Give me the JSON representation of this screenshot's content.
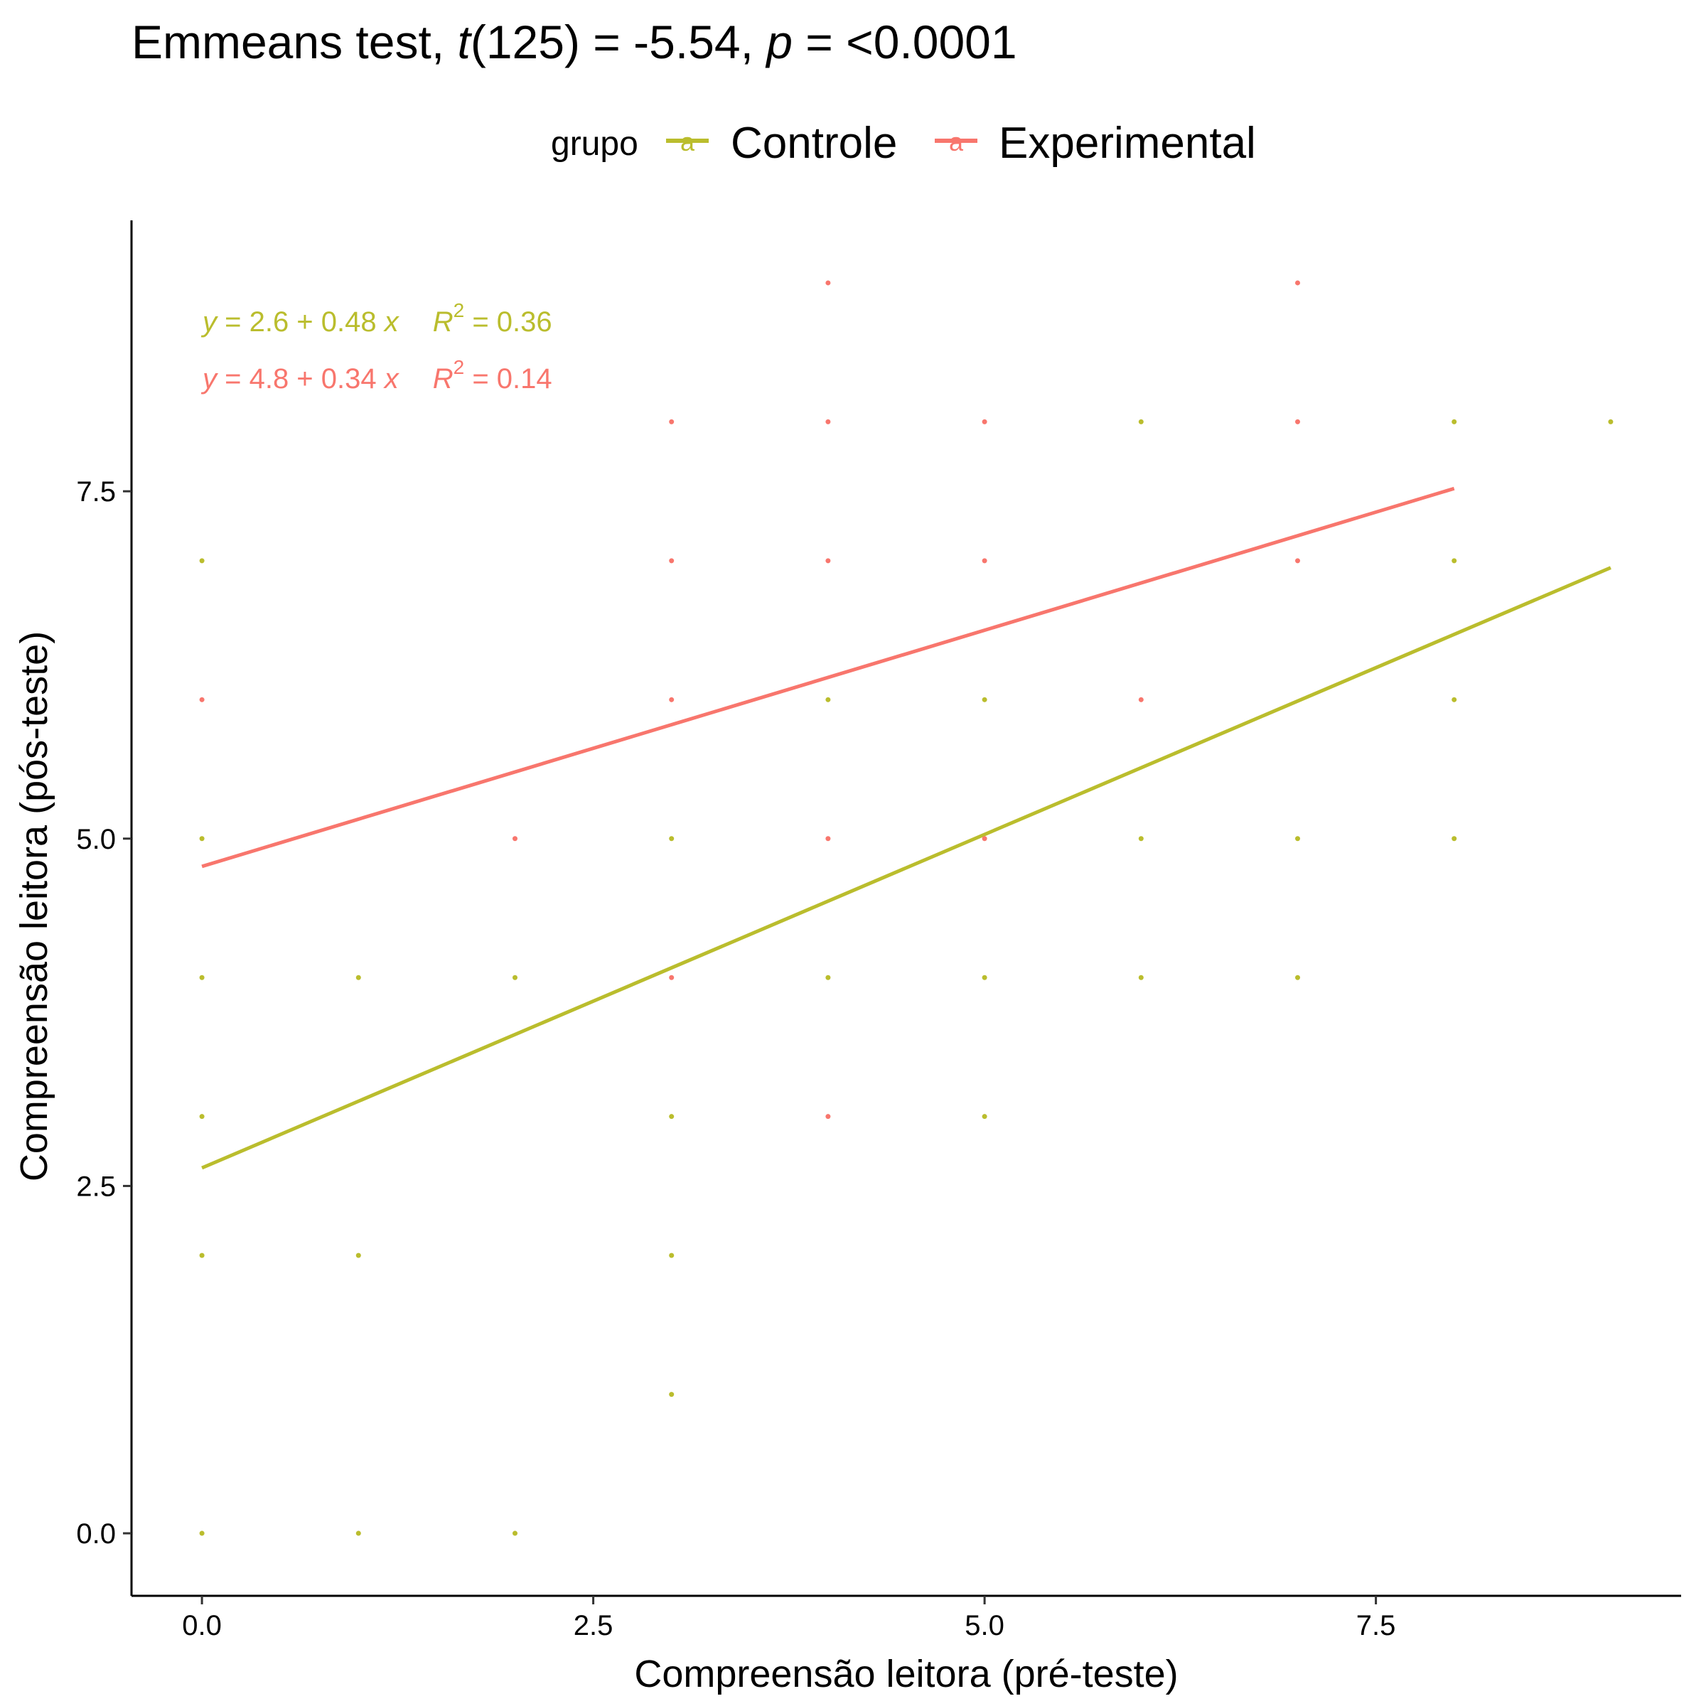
{
  "title": {
    "prefix": "Emmeans test, ",
    "t_symbol": "t",
    "t_stat": "(125) = -5.54, ",
    "p_symbol": "p",
    "p_value": " = <0.0001"
  },
  "legend": {
    "title": "grupo",
    "key_glyph": "a",
    "position": "top"
  },
  "colors": {
    "Controle": "#BABD2D",
    "Experimental": "#F8766D",
    "axis": "#000000"
  },
  "chart_data": {
    "type": "scatter",
    "xlabel": "Compreensão leitora (pré-teste)",
    "ylabel": "Compreensão leitora (pós-teste)",
    "xlim": [
      -0.45,
      9.45
    ],
    "ylim": [
      -0.45,
      9.45
    ],
    "x_ticks": [
      0,
      2.5,
      5,
      7.5
    ],
    "x_tick_labels": [
      "0.0",
      "2.5",
      "5.0",
      "7.5"
    ],
    "y_ticks": [
      0,
      2.5,
      5,
      7.5
    ],
    "y_tick_labels": [
      "0.0",
      "2.5",
      "5.0",
      "7.5"
    ],
    "grid": false,
    "series": [
      {
        "name": "Controle",
        "points": [
          [
            0,
            0
          ],
          [
            1,
            0
          ],
          [
            2,
            0
          ],
          [
            0,
            2
          ],
          [
            1,
            2
          ],
          [
            3,
            2
          ],
          [
            0,
            3
          ],
          [
            3,
            3
          ],
          [
            5,
            3
          ],
          [
            0,
            4
          ],
          [
            1,
            4
          ],
          [
            2,
            4
          ],
          [
            4,
            4
          ],
          [
            5,
            4
          ],
          [
            6,
            4
          ],
          [
            7,
            4
          ],
          [
            0,
            5
          ],
          [
            3,
            5
          ],
          [
            6,
            5
          ],
          [
            7,
            5
          ],
          [
            8,
            5
          ],
          [
            4,
            6
          ],
          [
            5,
            6
          ],
          [
            8,
            6
          ],
          [
            0,
            7
          ],
          [
            8,
            7
          ],
          [
            6,
            8
          ],
          [
            8,
            8
          ],
          [
            9,
            8
          ],
          [
            3,
            1
          ]
        ],
        "fit": {
          "x_range": [
            0,
            9
          ],
          "intercept": 2.63,
          "slope": 0.48
        },
        "equation": {
          "y": "y",
          "rhs": " = 2.6 + 0.48 ",
          "x": "x",
          "r": "R",
          "sup": "2",
          "r2": " = 0.36"
        }
      },
      {
        "name": "Experimental",
        "points": [
          [
            4,
            9
          ],
          [
            7,
            9
          ],
          [
            3,
            8
          ],
          [
            4,
            8
          ],
          [
            5,
            8
          ],
          [
            7,
            8
          ],
          [
            3,
            7
          ],
          [
            4,
            7
          ],
          [
            5,
            7
          ],
          [
            7,
            7
          ],
          [
            0,
            6
          ],
          [
            3,
            6
          ],
          [
            6,
            6
          ],
          [
            2,
            5
          ],
          [
            4,
            5
          ],
          [
            5,
            5
          ],
          [
            3,
            4
          ],
          [
            4,
            3
          ]
        ],
        "fit": {
          "x_range": [
            0,
            8
          ],
          "intercept": 4.8,
          "slope": 0.34
        },
        "equation": {
          "y": "y",
          "rhs": " = 4.8 + 0.34 ",
          "x": "x",
          "r": "R",
          "sup": "2",
          "r2": " = 0.14"
        }
      }
    ]
  }
}
